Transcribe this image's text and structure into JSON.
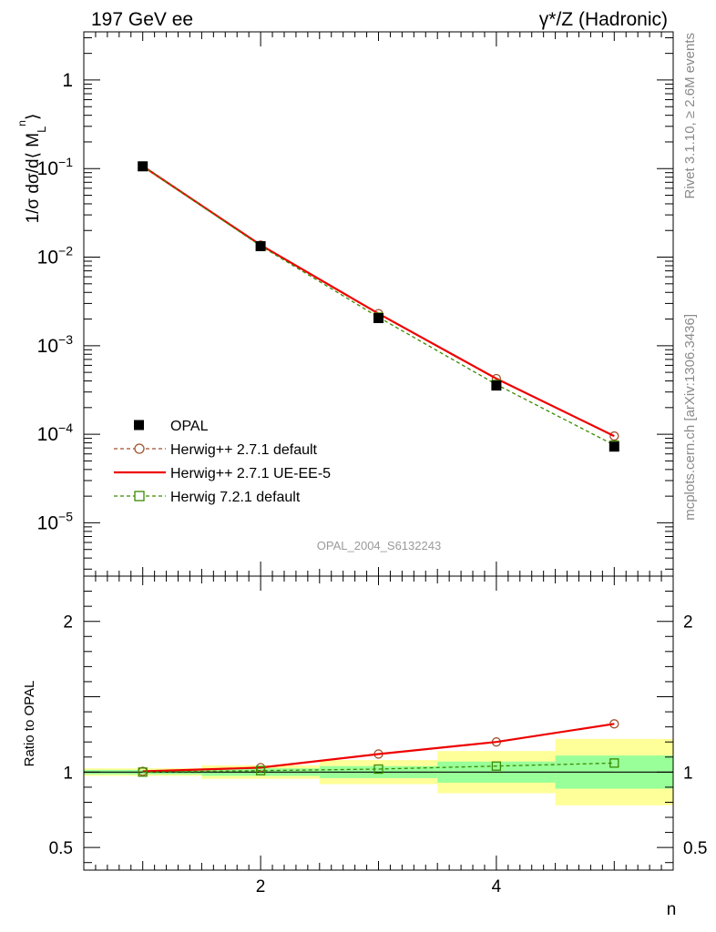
{
  "header": {
    "left": "197 GeV ee",
    "right": "γ*/Z (Hadronic)"
  },
  "side_labels": {
    "top": "Rivet 3.1.10, ≥ 2.6M events",
    "bottom": "mcplots.cern.ch [arXiv:1306.3436]"
  },
  "watermark": "OPAL_2004_S6132243",
  "chart_data": [
    {
      "type": "scatter",
      "panel": "main",
      "ylabel": "1/σ dσ/d⟨ M_L^n⟩",
      "yscale": "log",
      "ylim": [
        2.5e-06,
        3.5
      ],
      "xlim": [
        0.5,
        5.5
      ],
      "y_ticks": [
        {
          "value": 1,
          "label": "1"
        },
        {
          "value": 0.1,
          "label": "10^-1"
        },
        {
          "value": 0.01,
          "label": "10^-2"
        },
        {
          "value": 0.001,
          "label": "10^-3"
        },
        {
          "value": 0.0001,
          "label": "10^-4"
        },
        {
          "value": 1e-05,
          "label": "10^-5"
        }
      ],
      "legend_position": "bottom-left",
      "series": [
        {
          "name": "OPAL",
          "style": "data",
          "color": "#000000",
          "x": [
            1,
            2,
            3,
            4,
            5
          ],
          "y": [
            0.106,
            0.0133,
            0.00205,
            0.000355,
            7.25e-05
          ]
        },
        {
          "name": "Herwig++ 2.7.1 default",
          "style": "dashed-circle",
          "color": "#a0522d",
          "x": [
            1,
            2,
            3,
            4,
            5
          ],
          "y": [
            0.1065,
            0.0137,
            0.0023,
            0.000425,
            9.55e-05
          ]
        },
        {
          "name": "Herwig++ 2.7.1 UE-EE-5",
          "style": "solid",
          "color": "#ee0000",
          "x": [
            1,
            2,
            3,
            4,
            5
          ],
          "y": [
            0.1065,
            0.0137,
            0.0023,
            0.000425,
            9.55e-05
          ]
        },
        {
          "name": "Herwig 7.2.1 default",
          "style": "dashed-square",
          "color": "#3a8a00",
          "x": [
            1,
            2,
            3,
            4,
            5
          ],
          "y": [
            0.1065,
            0.0134,
            0.0021,
            0.000365,
            7.55e-05
          ]
        }
      ]
    },
    {
      "type": "scatter",
      "panel": "ratio",
      "ylabel": "Ratio to OPAL",
      "xlabel": "n",
      "ylim": [
        0.35,
        2.3
      ],
      "xlim": [
        0.5,
        5.5
      ],
      "x_ticks": [
        {
          "value": 2,
          "label": "2"
        },
        {
          "value": 4,
          "label": "4"
        }
      ],
      "y_ticks": [
        {
          "value": 2,
          "label": "2"
        },
        {
          "value": 1,
          "label": "1"
        },
        {
          "value": 0.5,
          "label": "0.5"
        }
      ],
      "bands": [
        {
          "x0": 0.5,
          "x1": 1.5,
          "stat": [
            0.985,
            1.015
          ],
          "total": [
            0.975,
            1.025
          ]
        },
        {
          "x0": 1.5,
          "x1": 2.5,
          "stat": [
            0.975,
            1.025
          ],
          "total": [
            0.955,
            1.045
          ]
        },
        {
          "x0": 2.5,
          "x1": 3.5,
          "stat": [
            0.96,
            1.04
          ],
          "total": [
            0.92,
            1.08
          ]
        },
        {
          "x0": 3.5,
          "x1": 4.5,
          "stat": [
            0.93,
            1.07
          ],
          "total": [
            0.86,
            1.14
          ]
        },
        {
          "x0": 4.5,
          "x1": 5.5,
          "stat": [
            0.89,
            1.11
          ],
          "total": [
            0.78,
            1.22
          ]
        }
      ],
      "band_colors": {
        "stat": "#99ff99",
        "total": "#ffff99"
      },
      "series": [
        {
          "name": "Herwig++ 2.7.1 default",
          "style": "dashed-circle",
          "color": "#a0522d",
          "x": [
            1,
            2,
            3,
            4,
            5
          ],
          "y": [
            1.005,
            1.03,
            1.12,
            1.2,
            1.32
          ]
        },
        {
          "name": "Herwig++ 2.7.1 UE-EE-5",
          "style": "solid",
          "color": "#ee0000",
          "x": [
            1,
            2,
            3,
            4,
            5
          ],
          "y": [
            1.005,
            1.03,
            1.12,
            1.2,
            1.32
          ]
        },
        {
          "name": "Herwig 7.2.1 default",
          "style": "dashed-square",
          "color": "#3a8a00",
          "x": [
            1,
            2,
            3,
            4,
            5
          ],
          "y": [
            1.0,
            1.01,
            1.02,
            1.04,
            1.06
          ]
        }
      ]
    }
  ]
}
